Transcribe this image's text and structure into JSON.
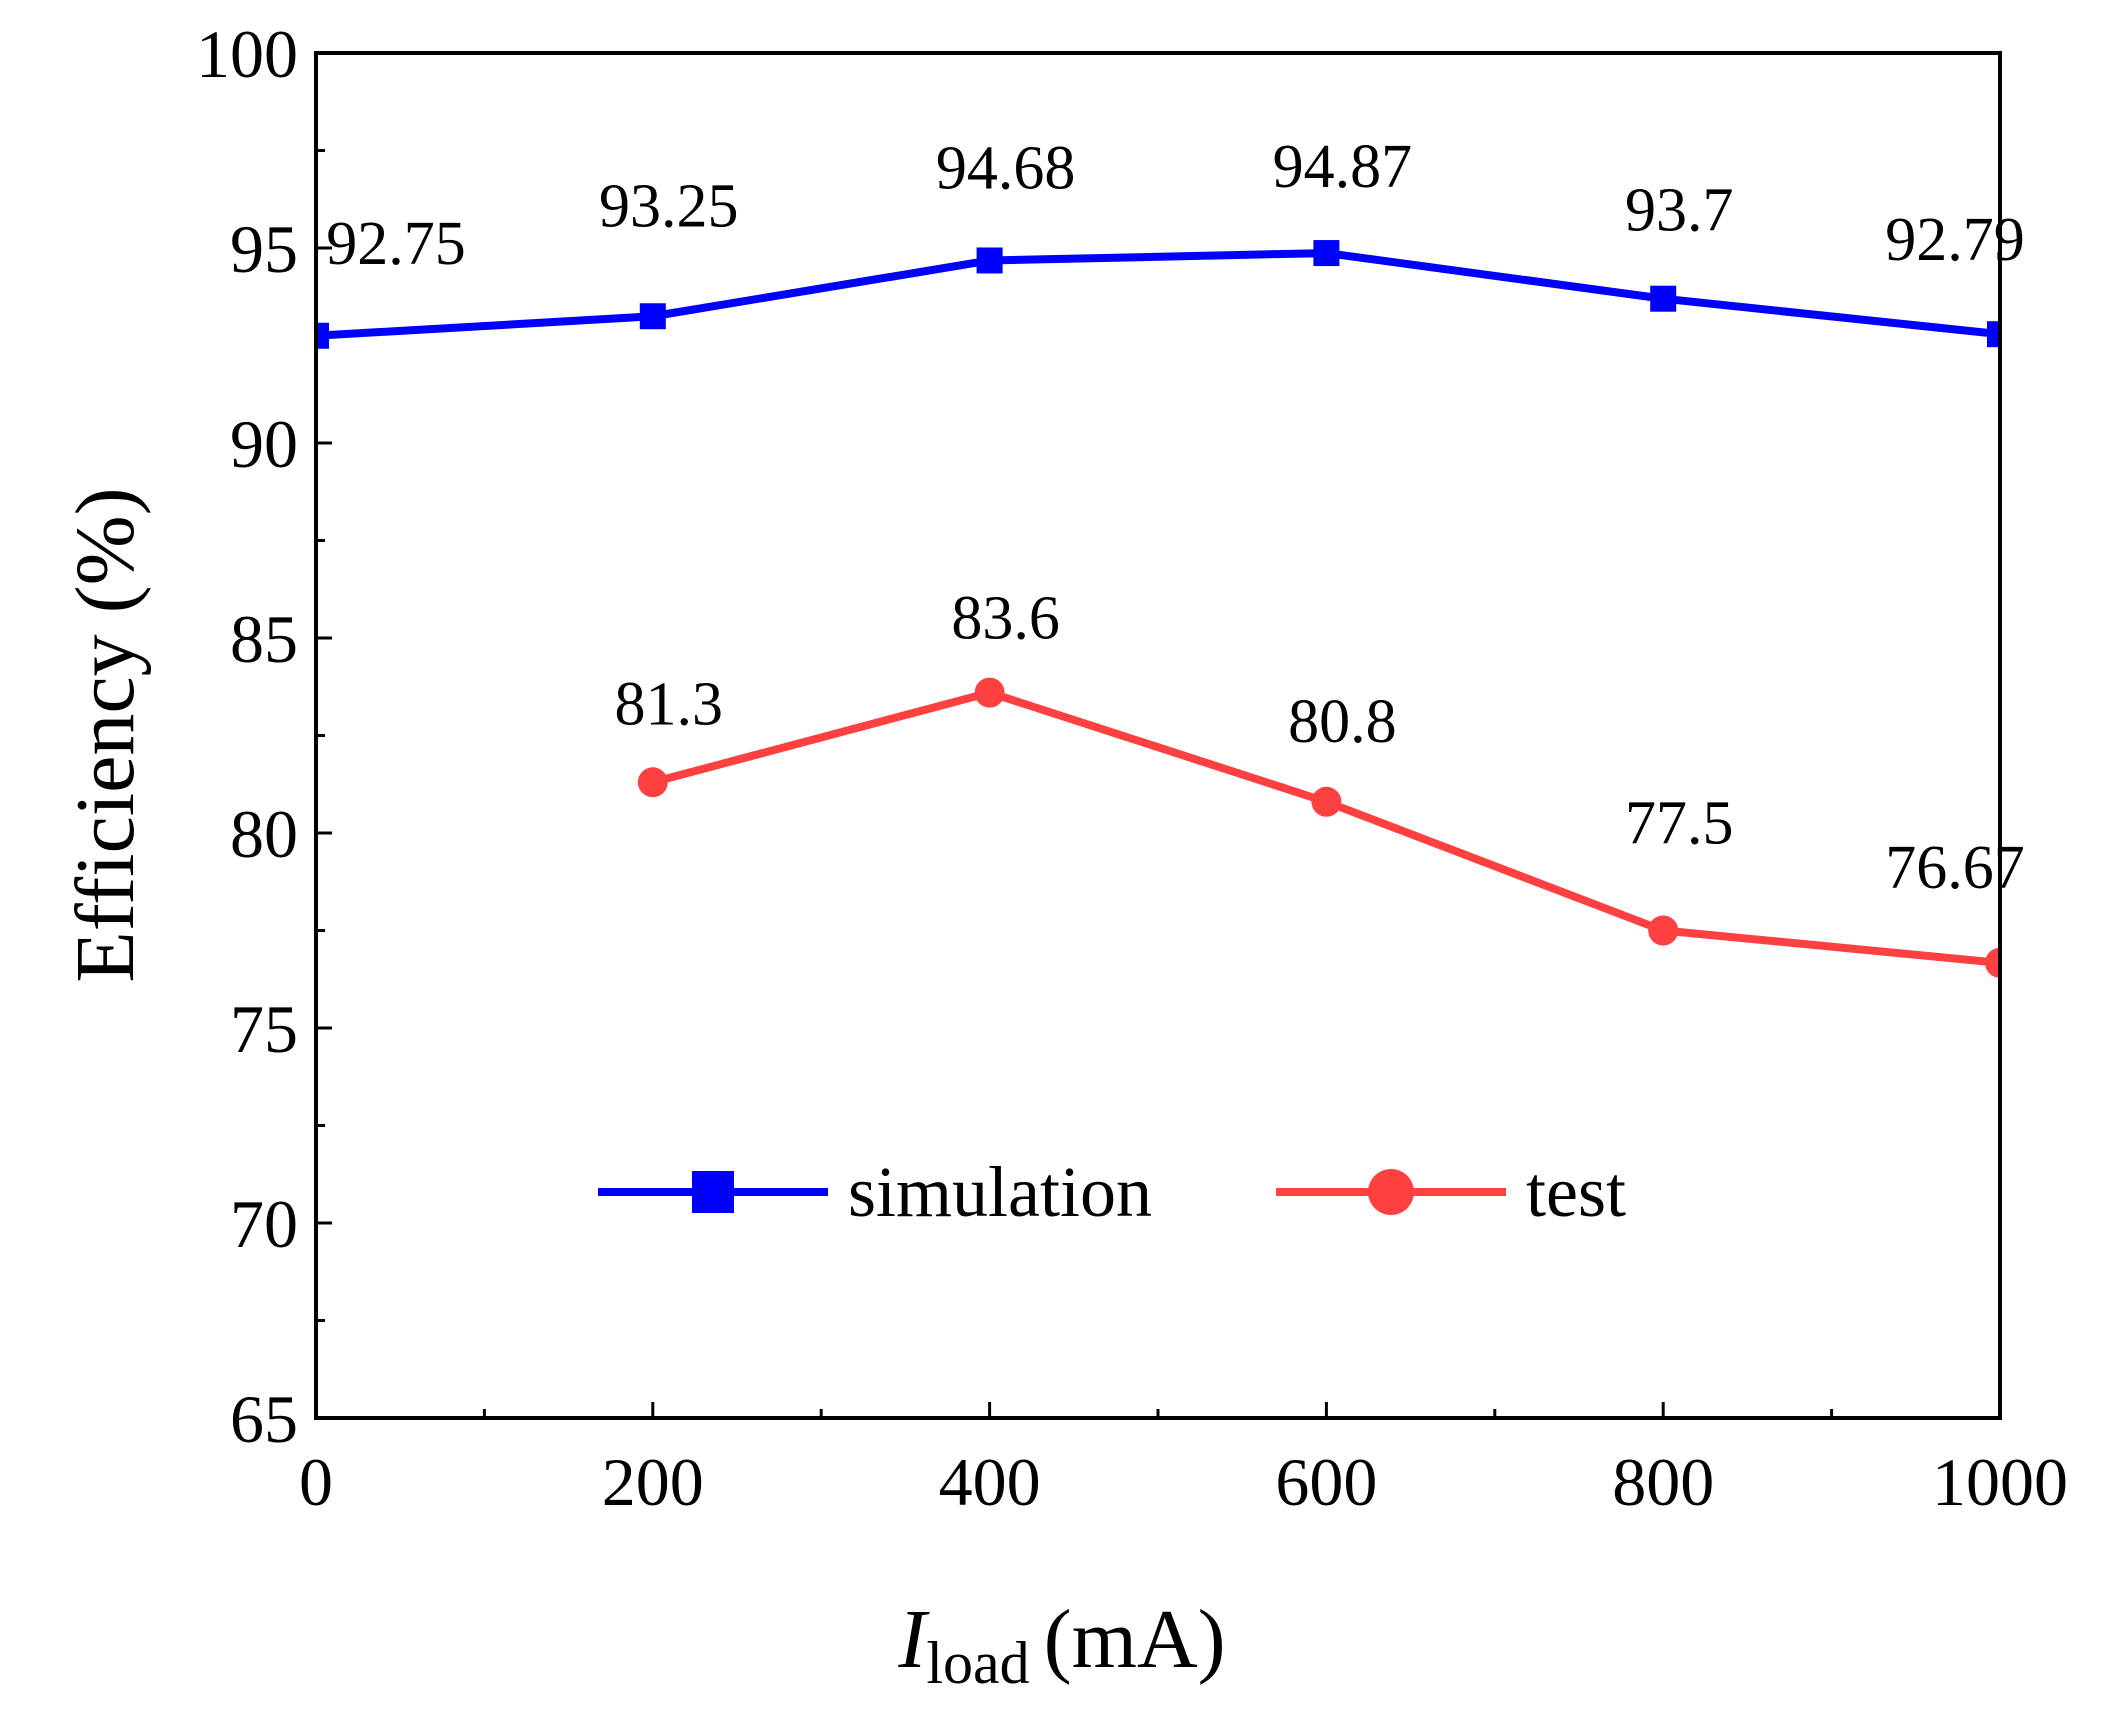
{
  "chart_data": {
    "type": "line",
    "xlabel_main": "I",
    "xlabel_sub": "load",
    "xlabel_unit": "(mA)",
    "ylabel": "Efficiency (%)",
    "xlim": [
      0,
      1000
    ],
    "ylim": [
      65,
      100
    ],
    "x_ticks": [
      0,
      200,
      400,
      600,
      800,
      1000
    ],
    "x_minor_ticks": [
      100,
      300,
      500,
      700,
      900
    ],
    "y_ticks": [
      65,
      70,
      75,
      80,
      85,
      90,
      95,
      100
    ],
    "y_minor_ticks": [
      67.5,
      72.5,
      77.5,
      82.5,
      87.5,
      92.5,
      97.5
    ],
    "grid": false,
    "legend_position": "bottom-center",
    "series": [
      {
        "name": "simulation",
        "color": "#0000ff",
        "marker": "square",
        "x": [
          0,
          200,
          400,
          600,
          800,
          1000
        ],
        "values": [
          92.75,
          93.25,
          94.68,
          94.87,
          93.7,
          92.79
        ],
        "labels": [
          "92.75",
          "93.25",
          "94.68",
          "94.87",
          "93.7",
          "92.79"
        ]
      },
      {
        "name": "test",
        "color": "#ff4040",
        "marker": "circle",
        "x": [
          200,
          400,
          600,
          800,
          1000
        ],
        "values": [
          81.3,
          83.6,
          80.8,
          77.5,
          76.67
        ],
        "labels": [
          "81.3",
          "83.6",
          "80.8",
          "77.5",
          "76.67"
        ]
      }
    ]
  }
}
